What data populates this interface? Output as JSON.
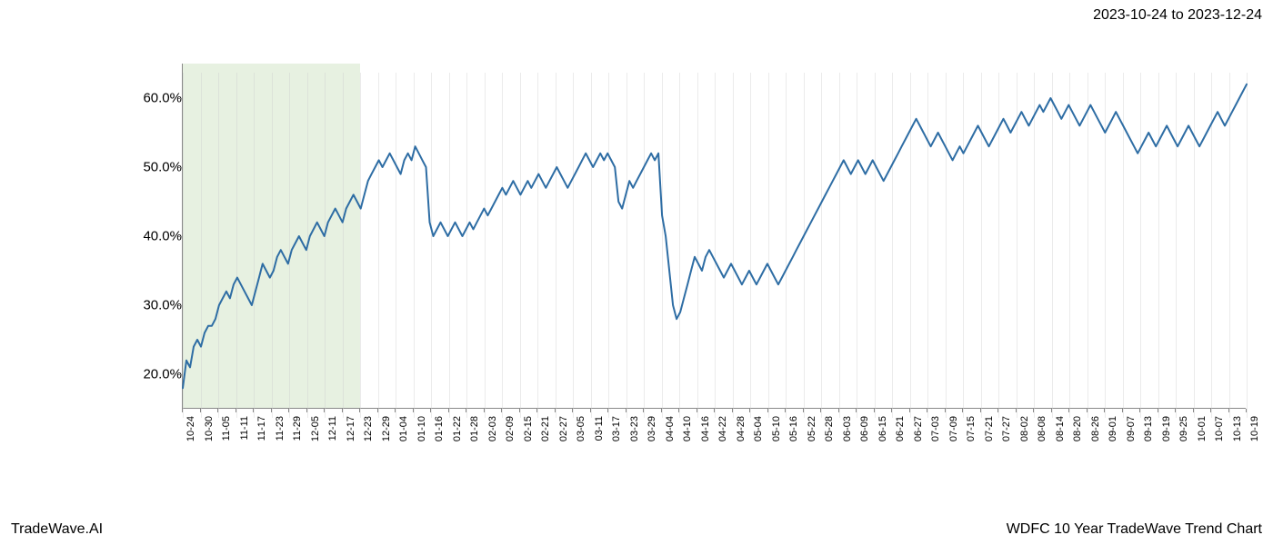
{
  "header": {
    "date_range": "2023-10-24 to 2023-12-24"
  },
  "footer": {
    "left": "TradeWave.AI",
    "right": "WDFC 10 Year TradeWave Trend Chart"
  },
  "chart": {
    "type": "line",
    "background_color": "#ffffff",
    "line_color": "#2e6da4",
    "line_width": 2,
    "grid_color": "#cccccc",
    "axis_color": "#888888",
    "highlight": {
      "fill": "#d4e6c8",
      "opacity": 0.55,
      "x_start_label": "10-24",
      "x_end_label": "12-23"
    },
    "y_axis": {
      "min": 15,
      "max": 65,
      "ticks": [
        20,
        30,
        40,
        50,
        60
      ],
      "tick_format_suffix": ".0%",
      "label_fontsize": 15
    },
    "x_axis": {
      "labels": [
        "10-24",
        "10-30",
        "11-05",
        "11-11",
        "11-17",
        "11-23",
        "11-29",
        "12-05",
        "12-11",
        "12-17",
        "12-23",
        "12-29",
        "01-04",
        "01-10",
        "01-16",
        "01-22",
        "01-28",
        "02-03",
        "02-09",
        "02-15",
        "02-21",
        "02-27",
        "03-05",
        "03-11",
        "03-17",
        "03-23",
        "03-29",
        "04-04",
        "04-10",
        "04-16",
        "04-22",
        "04-28",
        "05-04",
        "05-10",
        "05-16",
        "05-22",
        "05-28",
        "06-03",
        "06-09",
        "06-15",
        "06-21",
        "06-27",
        "07-03",
        "07-09",
        "07-15",
        "07-21",
        "07-27",
        "08-02",
        "08-08",
        "08-14",
        "08-20",
        "08-26",
        "09-01",
        "09-07",
        "09-13",
        "09-19",
        "09-25",
        "10-01",
        "10-07",
        "10-13",
        "10-19"
      ],
      "label_fontsize": 11,
      "rotation": -90
    },
    "series": {
      "name": "WDFC Trend",
      "values": [
        18,
        22,
        21,
        24,
        25,
        24,
        26,
        27,
        27,
        28,
        30,
        31,
        32,
        31,
        33,
        34,
        33,
        32,
        31,
        30,
        32,
        34,
        36,
        35,
        34,
        35,
        37,
        38,
        37,
        36,
        38,
        39,
        40,
        39,
        38,
        40,
        41,
        42,
        41,
        40,
        42,
        43,
        44,
        43,
        42,
        44,
        45,
        46,
        45,
        44,
        46,
        48,
        49,
        50,
        51,
        50,
        51,
        52,
        51,
        50,
        49,
        51,
        52,
        51,
        53,
        52,
        51,
        50,
        42,
        40,
        41,
        42,
        41,
        40,
        41,
        42,
        41,
        40,
        41,
        42,
        41,
        42,
        43,
        44,
        43,
        44,
        45,
        46,
        47,
        46,
        47,
        48,
        47,
        46,
        47,
        48,
        47,
        48,
        49,
        48,
        47,
        48,
        49,
        50,
        49,
        48,
        47,
        48,
        49,
        50,
        51,
        52,
        51,
        50,
        51,
        52,
        51,
        52,
        51,
        50,
        45,
        44,
        46,
        48,
        47,
        48,
        49,
        50,
        51,
        52,
        51,
        52,
        43,
        40,
        35,
        30,
        28,
        29,
        31,
        33,
        35,
        37,
        36,
        35,
        37,
        38,
        37,
        36,
        35,
        34,
        35,
        36,
        35,
        34,
        33,
        34,
        35,
        34,
        33,
        34,
        35,
        36,
        35,
        34,
        33,
        34,
        35,
        36,
        37,
        38,
        39,
        40,
        41,
        42,
        43,
        44,
        45,
        46,
        47,
        48,
        49,
        50,
        51,
        50,
        49,
        50,
        51,
        50,
        49,
        50,
        51,
        50,
        49,
        48,
        49,
        50,
        51,
        52,
        53,
        54,
        55,
        56,
        57,
        56,
        55,
        54,
        53,
        54,
        55,
        54,
        53,
        52,
        51,
        52,
        53,
        52,
        53,
        54,
        55,
        56,
        55,
        54,
        53,
        54,
        55,
        56,
        57,
        56,
        55,
        56,
        57,
        58,
        57,
        56,
        57,
        58,
        59,
        58,
        59,
        60,
        59,
        58,
        57,
        58,
        59,
        58,
        57,
        56,
        57,
        58,
        59,
        58,
        57,
        56,
        55,
        56,
        57,
        58,
        57,
        56,
        55,
        54,
        53,
        52,
        53,
        54,
        55,
        54,
        53,
        54,
        55,
        56,
        55,
        54,
        53,
        54,
        55,
        56,
        55,
        54,
        53,
        54,
        55,
        56,
        57,
        58,
        57,
        56,
        57,
        58,
        59,
        60,
        61,
        62
      ]
    }
  }
}
